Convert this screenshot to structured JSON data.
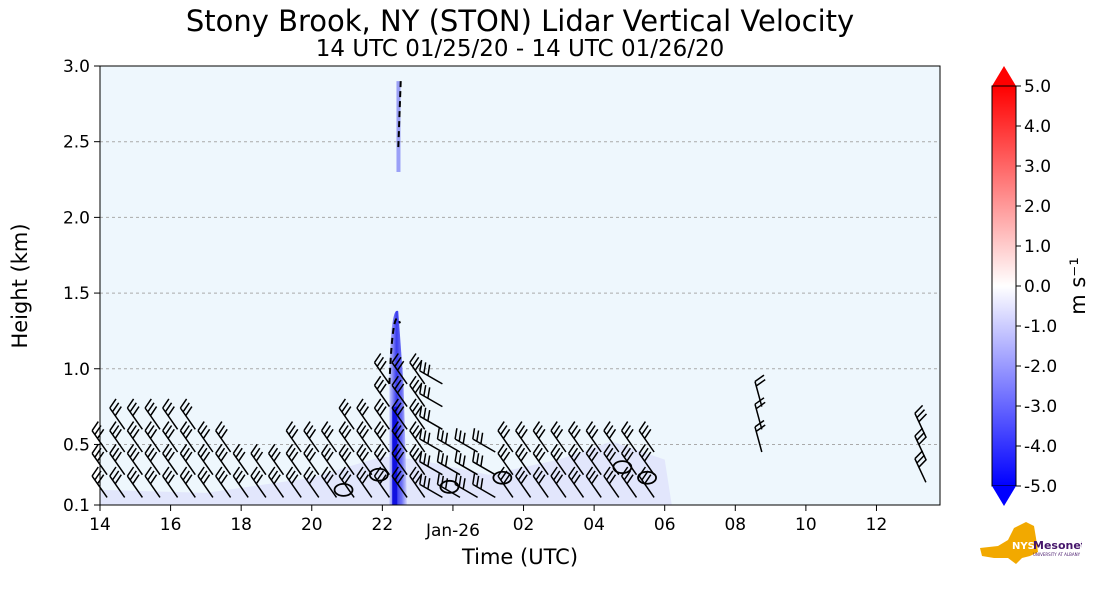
{
  "chart_data": {
    "type": "heatmap",
    "title": "Stony Brook, NY (STON) Lidar Vertical Velocity",
    "subtitle": "14 UTC 01/25/20 - 14 UTC 01/26/20",
    "xlabel": "Time (UTC)",
    "ylabel": "Height (km)",
    "x_range_hours_since_14utc_jan25": [
      0,
      23.8
    ],
    "ylim": [
      0.1,
      3.0
    ],
    "x_ticks": [
      {
        "label": "14",
        "hour": 0
      },
      {
        "label": "16",
        "hour": 2
      },
      {
        "label": "18",
        "hour": 4
      },
      {
        "label": "20",
        "hour": 6
      },
      {
        "label": "22",
        "hour": 8
      },
      {
        "label": "Jan-26",
        "hour": 10,
        "date_label": true
      },
      {
        "label": "02",
        "hour": 12
      },
      {
        "label": "04",
        "hour": 14
      },
      {
        "label": "06",
        "hour": 16
      },
      {
        "label": "08",
        "hour": 18
      },
      {
        "label": "10",
        "hour": 20
      },
      {
        "label": "12",
        "hour": 22
      }
    ],
    "y_ticks": [
      "0.1",
      "0.5",
      "1.0",
      "1.5",
      "2.0",
      "2.5",
      "3.0"
    ],
    "y_tick_values": [
      0.1,
      0.5,
      1.0,
      1.5,
      2.0,
      2.5,
      3.0
    ],
    "grid": "horizontal dashed",
    "colorbar": {
      "label": "m s⁻¹",
      "range": [
        -5.0,
        5.0
      ],
      "ticks": [
        "5.0",
        "4.0",
        "3.0",
        "2.0",
        "1.0",
        "0.0",
        "-1.0",
        "-2.0",
        "-3.0",
        "-4.0",
        "-5.0"
      ],
      "tick_values": [
        5,
        4,
        3,
        2,
        1,
        0,
        -1,
        -2,
        -3,
        -4,
        -5
      ],
      "colormap": "blue-white-red",
      "colors": {
        "min": "#0000ff",
        "mid": "#ffffff",
        "max": "#ff0000"
      }
    },
    "background_color": "#eef7fd",
    "features": [
      {
        "name": "strong downdraft column",
        "hour_range": [
          8.2,
          8.6
        ],
        "height_range": [
          0.1,
          1.4
        ],
        "min_velocity": -4.5
      },
      {
        "name": "weak downdraft streak aloft",
        "hour_range": [
          8.4,
          8.6
        ],
        "height_range": [
          2.3,
          2.9
        ],
        "min_velocity": -1.0
      },
      {
        "name": "boundary-layer wind barbs",
        "hour_range": [
          0,
          16.2
        ],
        "height_range": [
          0.1,
          1.1
        ]
      },
      {
        "name": "isolated wind barbs",
        "hour_range": [
          18.6,
          18.9
        ],
        "height_range": [
          0.4,
          0.8
        ]
      },
      {
        "name": "late wind barbs",
        "hour_range": [
          23.2,
          23.7
        ],
        "height_range": [
          0.2,
          0.6
        ]
      }
    ]
  },
  "logo": {
    "text": "NYS Mesonet",
    "subtext": "UNIVERSITY AT ALBANY",
    "colors": {
      "state": "#f2a900",
      "text": "#46166b"
    }
  }
}
